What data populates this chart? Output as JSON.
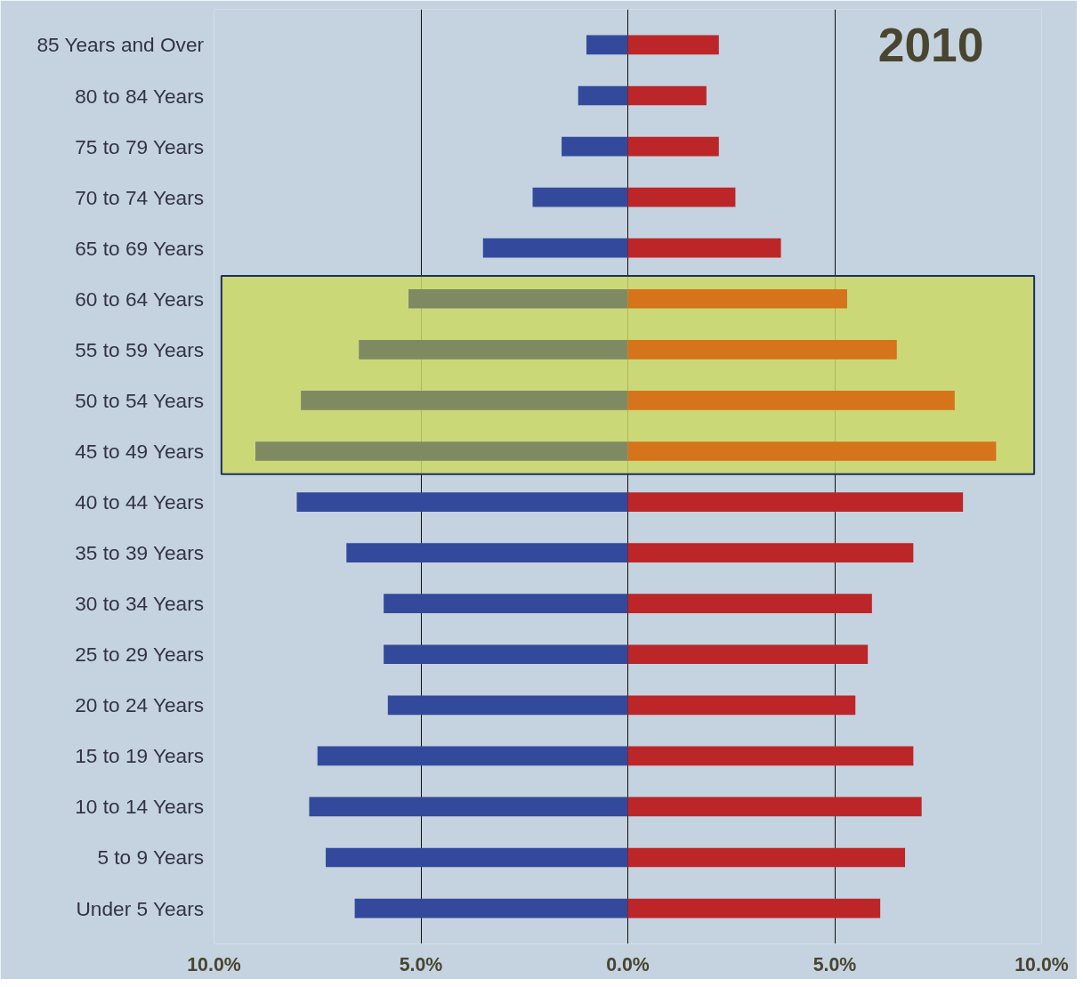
{
  "chart_data": {
    "type": "bar",
    "orientation": "horizontal",
    "stacked": true,
    "title": "2010",
    "categories": [
      "85 Years and Over",
      "80 to 84 Years",
      "75 to 79 Years",
      "70 to 74 Years",
      "65 to 69 Years",
      "60 to 64 Years",
      "55 to 59 Years",
      "50 to 54 Years",
      "45 to 49 Years",
      "40 to 44 Years",
      "35 to 39 Years",
      "30 to 34 Years",
      "25 to 29 Years",
      "20 to 24 Years",
      "15 to 19 Years",
      "10 to 14 Years",
      "5 to 9 Years",
      "Under 5 Years"
    ],
    "series": [
      {
        "values": [
          -1.0,
          -1.2,
          -1.6,
          -2.3,
          -3.5,
          -5.3,
          -6.5,
          -7.9,
          -9.0,
          -8.0,
          -6.8,
          -5.9,
          -5.9,
          -5.8,
          -7.5,
          -7.7,
          -7.3,
          -6.6
        ],
        "colors": [
          "#334a9c",
          "#334a9c",
          "#334a9c",
          "#334a9c",
          "#334a9c",
          "#808a62",
          "#808a62",
          "#808a62",
          "#808a62",
          "#334a9c",
          "#334a9c",
          "#334a9c",
          "#334a9c",
          "#334a9c",
          "#334a9c",
          "#334a9c",
          "#334a9c",
          "#334a9c"
        ]
      },
      {
        "values": [
          2.2,
          1.9,
          2.2,
          2.6,
          3.7,
          5.3,
          6.5,
          7.9,
          8.9,
          8.1,
          6.9,
          5.9,
          5.8,
          5.5,
          6.9,
          7.1,
          6.7,
          6.1
        ],
        "colors": [
          "#bd2629",
          "#bd2629",
          "#bd2629",
          "#bd2629",
          "#bd2629",
          "#d5741a",
          "#d5741a",
          "#d5741a",
          "#d5741a",
          "#bd2629",
          "#bd2629",
          "#bd2629",
          "#bd2629",
          "#bd2629",
          "#bd2629",
          "#bd2629",
          "#bd2629",
          "#bd2629"
        ]
      }
    ],
    "xlim": [
      -10,
      10
    ],
    "xticks": [
      {
        "value": -10,
        "label": "10.0%"
      },
      {
        "value": -5,
        "label": "5.0%"
      },
      {
        "value": 0,
        "label": "0.0%"
      },
      {
        "value": 5,
        "label": "5.0%"
      },
      {
        "value": 10,
        "label": "10.0%"
      }
    ],
    "grid": "x",
    "bands": [
      {
        "axis": "y",
        "from": "60 to 64 Years",
        "to": "45 to 49 Years",
        "color": "#cbd866"
      }
    ]
  }
}
